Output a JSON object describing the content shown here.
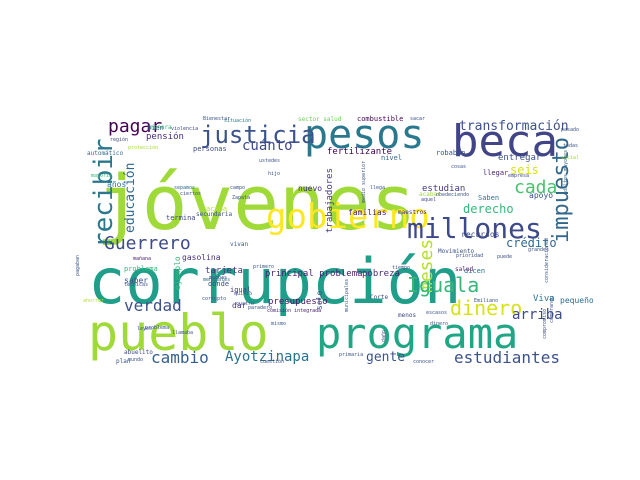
{
  "word_cloud": {
    "words": [
      {
        "text": "corrupción",
        "color": "#1f9e89"
      },
      {
        "text": "jóvenes",
        "color": "#a0da39"
      },
      {
        "text": "pueblo",
        "color": "#a0da39"
      },
      {
        "text": "programa",
        "color": "#21a685"
      },
      {
        "text": "pesos",
        "color": "#2a788e"
      },
      {
        "text": "beca",
        "color": "#414487"
      },
      {
        "text": "gobierno",
        "color": "#fde725"
      },
      {
        "text": "justicia",
        "color": "#3b528b"
      },
      {
        "text": "millones",
        "color": "#3e4989"
      },
      {
        "text": "recibir",
        "color": "#2a788e"
      },
      {
        "text": "pagar",
        "color": "#440154"
      },
      {
        "text": "impuesto",
        "color": "#31688e"
      },
      {
        "text": "cada",
        "color": "#4ac16d"
      },
      {
        "text": "transformación",
        "color": "#3b528b"
      },
      {
        "text": "Guerrero",
        "color": "#3e4a89"
      },
      {
        "text": "meses",
        "color": "#b5de2b"
      },
      {
        "text": "Iguala",
        "color": "#35b779"
      },
      {
        "text": "dinero",
        "color": "#d8e219"
      },
      {
        "text": "verdad",
        "color": "#3b528b"
      },
      {
        "text": "cambio",
        "color": "#355f8d"
      },
      {
        "text": "Ayotzinapa",
        "color": "#2c728e"
      },
      {
        "text": "estudiantes",
        "color": "#3b528b"
      },
      {
        "text": "gente",
        "color": "#3b528b"
      },
      {
        "text": "arriba",
        "color": "#3e4a89"
      },
      {
        "text": "crédito",
        "color": "#31688e"
      },
      {
        "text": "educación",
        "color": "#31688e"
      },
      {
        "text": "cuánto",
        "color": "#3e4989"
      },
      {
        "text": "derecho",
        "color": "#35b779"
      },
      {
        "text": "seis",
        "color": "#d8e219"
      },
      {
        "text": "fertilizante",
        "color": "#440154"
      },
      {
        "text": "estudian",
        "color": "#443a83"
      },
      {
        "text": "entregar",
        "color": "#3b528b"
      },
      {
        "text": "trabajadores",
        "color": "#443983"
      },
      {
        "text": "principal problema",
        "color": "#481f70"
      },
      {
        "text": "presupuesto",
        "color": "#481668"
      },
      {
        "text": "pobreza",
        "color": "#472c7a"
      },
      {
        "text": "tarjeta",
        "color": "#46337e"
      },
      {
        "text": "gasolina",
        "color": "#46327e"
      },
      {
        "text": "familias",
        "color": "#482173"
      },
      {
        "text": "nuevo",
        "color": "#472d7b"
      },
      {
        "text": "años",
        "color": "#2a788e"
      },
      {
        "text": "pensión",
        "color": "#472a7a"
      },
      {
        "text": "bien",
        "color": "#3b528b"
      },
      {
        "text": "Viva",
        "color": "#2a788e"
      },
      {
        "text": "pequeño",
        "color": "#31688e"
      },
      {
        "text": "recursos",
        "color": "#3e4a89"
      },
      {
        "text": "dicen",
        "color": "#2c728e"
      },
      {
        "text": "apoyo",
        "color": "#3b528b"
      },
      {
        "text": "dar",
        "color": "#46327e"
      },
      {
        "text": "saber",
        "color": "#3b528b"
      },
      {
        "text": "igual",
        "color": "#443a83"
      },
      {
        "text": "dónde",
        "color": "#3e4a89"
      },
      {
        "text": "vivan",
        "color": "#3b528b"
      },
      {
        "text": "ejemplo",
        "color": "#35b779"
      },
      {
        "text": "problema",
        "color": "#35b779"
      },
      {
        "text": "termina",
        "color": "#3e4a89"
      },
      {
        "text": "secundaria",
        "color": "#3b528b"
      },
      {
        "text": "acaba",
        "color": "#b5de2b"
      },
      {
        "text": "Saben",
        "color": "#2a788e"
      },
      {
        "text": "Corte",
        "color": "#3e4a89"
      },
      {
        "text": "Movimiento",
        "color": "#3b528b"
      },
      {
        "text": "salud",
        "color": "#482173"
      },
      {
        "text": "solo",
        "color": "#3b528b"
      },
      {
        "text": "robaban",
        "color": "#3b528b"
      },
      {
        "text": "nivel",
        "color": "#31688e"
      },
      {
        "text": "llegar",
        "color": "#482173"
      },
      {
        "text": "combustible",
        "color": "#440154"
      },
      {
        "text": "sector salud",
        "color": "#6ccd5a"
      },
      {
        "text": "personas",
        "color": "#3e4a89"
      },
      {
        "text": "maestros",
        "color": "#443a83"
      },
      {
        "text": "primero",
        "color": "#3b528b"
      },
      {
        "text": "manera",
        "color": "#35b779"
      },
      {
        "text": "Bienestar",
        "color": "#3b528b"
      },
      {
        "text": "situación",
        "color": "#2a788e"
      },
      {
        "text": "campo",
        "color": "#3b528b"
      },
      {
        "text": "mañana",
        "color": "#482173"
      },
      {
        "text": "muchas",
        "color": "#3e4a89"
      },
      {
        "text": "mensuales",
        "color": "#31688e"
      },
      {
        "text": "abuelito",
        "color": "#3e4a89"
      },
      {
        "text": "mundo",
        "color": "#3b528b"
      },
      {
        "text": "plan",
        "color": "#3b528b"
      },
      {
        "text": "primaria",
        "color": "#3b528b"
      },
      {
        "text": "menos",
        "color": "#3e4a89"
      },
      {
        "text": "escasos",
        "color": "#3b528b"
      },
      {
        "text": "mismo",
        "color": "#3b528b"
      },
      {
        "text": "leyes",
        "color": "#3b528b"
      },
      {
        "text": "automático",
        "color": "#31688e"
      },
      {
        "text": "región",
        "color": "#3e4a89"
      },
      {
        "text": "protección",
        "color": "#a0da39"
      },
      {
        "text": "violencia",
        "color": "#3e4a89"
      },
      {
        "text": "mayoría",
        "color": "#35b779"
      },
      {
        "text": "tiempo",
        "color": "#3b528b"
      },
      {
        "text": "pagaban",
        "color": "#3b528b"
      },
      {
        "text": "técnicas",
        "color": "#3b528b"
      },
      {
        "text": "ahorrar",
        "color": "#b5de2b"
      },
      {
        "text": "aquel",
        "color": "#3e4a89"
      },
      {
        "text": "llega",
        "color": "#3b528b"
      },
      {
        "text": "sacar",
        "color": "#3b528b"
      },
      {
        "text": "pasado",
        "color": "#3b528b"
      },
      {
        "text": "empresa",
        "color": "#3e4a89"
      },
      {
        "text": "social",
        "color": "#a0da39"
      },
      {
        "text": "adultos mayores",
        "color": "#31688e"
      },
      {
        "text": "comisión integrada",
        "color": "#482173"
      },
      {
        "text": "paradero",
        "color": "#3b528b"
      },
      {
        "text": "quiero",
        "color": "#3e4a89"
      },
      {
        "text": "conocer",
        "color": "#3b528b"
      },
      {
        "text": "ciertos",
        "color": "#3b528b"
      },
      {
        "text": "municipales",
        "color": "#3b528b"
      },
      {
        "text": "prioridad",
        "color": "#3b528b"
      },
      {
        "text": "acabar",
        "color": "#a0da39"
      },
      {
        "text": "obedeciendo",
        "color": "#3b528b"
      },
      {
        "text": "medio superior",
        "color": "#3b528b"
      },
      {
        "text": "sepamos",
        "color": "#31688e"
      },
      {
        "text": "Zapata",
        "color": "#3b528b"
      },
      {
        "text": "Emiliano",
        "color": "#3b528b"
      },
      {
        "text": "consideraciones",
        "color": "#3b528b"
      },
      {
        "text": "comprando",
        "color": "#3b528b"
      },
      {
        "text": "corrupto",
        "color": "#3b528b"
      },
      {
        "text": "daño",
        "color": "#3b528b"
      },
      {
        "text": "dinero",
        "color": "#3b528b"
      },
      {
        "text": "cuatro",
        "color": "#3b528b"
      },
      {
        "text": "todas",
        "color": "#3b528b"
      },
      {
        "text": "ustedes",
        "color": "#3b528b"
      },
      {
        "text": "hijo",
        "color": "#3b528b"
      },
      {
        "text": "problema",
        "color": "#3b528b"
      },
      {
        "text": "llamaba",
        "color": "#3b528b"
      },
      {
        "text": "cuestión",
        "color": "#3b528b"
      },
      {
        "text": "grandes",
        "color": "#3b528b"
      },
      {
        "text": "puede",
        "color": "#3b528b"
      },
      {
        "text": "cosas",
        "color": "#3b528b"
      },
      {
        "text": "compromiso",
        "color": "#3b528b"
      }
    ]
  }
}
